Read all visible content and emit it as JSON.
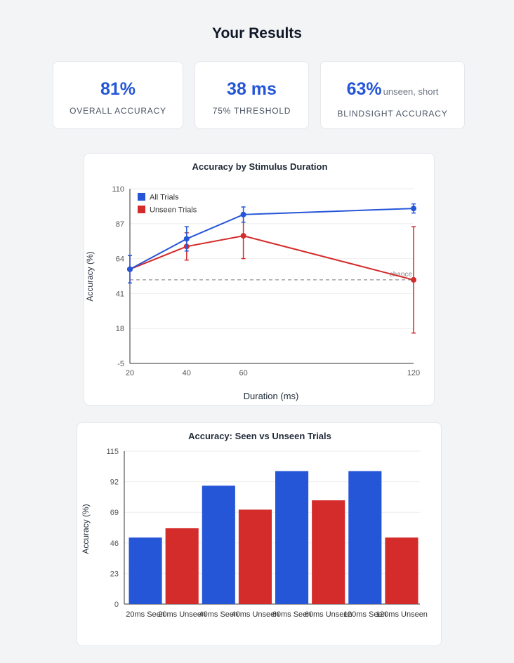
{
  "page": {
    "title": "Your Results"
  },
  "stats": [
    {
      "value": "81%",
      "note": "",
      "label": "OVERALL ACCURACY"
    },
    {
      "value": "38 ms",
      "note": "",
      "label": "75% THRESHOLD"
    },
    {
      "value": "63%",
      "note": "unseen, short",
      "label": "BLINDSIGHT ACCURACY"
    }
  ],
  "colors": {
    "all": "#2556d8",
    "unseen": "#d42b2b",
    "accent": "#2556d8"
  },
  "chart_data": [
    {
      "type": "line",
      "title": "Accuracy by Stimulus Duration",
      "xlabel": "Duration (ms)",
      "ylabel": "Accuracy (%)",
      "x": [
        20,
        40,
        60,
        120
      ],
      "xlim": [
        20,
        120
      ],
      "ylim": [
        -5,
        110
      ],
      "yticks": [
        110,
        87,
        64,
        41,
        18,
        -5
      ],
      "xticks": [
        20,
        40,
        60,
        120
      ],
      "grid": true,
      "legend_position": "top-left",
      "chance_level": 50,
      "chance_label": "chance",
      "series": [
        {
          "name": "All Trials",
          "color": "#2556d8",
          "values": [
            57,
            77,
            93,
            97
          ],
          "err": [
            9,
            8,
            5,
            3
          ]
        },
        {
          "name": "Unseen Trials",
          "color": "#d42b2b",
          "values": [
            57,
            72,
            79,
            50
          ],
          "err": [
            9,
            9,
            15,
            35
          ]
        }
      ]
    },
    {
      "type": "bar",
      "title": "Accuracy: Seen vs Unseen Trials",
      "ylabel": "Accuracy (%)",
      "ylim": [
        0,
        115
      ],
      "yticks": [
        115,
        92,
        69,
        46,
        23,
        0
      ],
      "grid": true,
      "categories": [
        "20ms Seen",
        "20ms Unseen",
        "40ms Seen",
        "40ms Unseen",
        "60ms Seen",
        "60ms Unseen",
        "120ms Seen",
        "120ms Unseen"
      ],
      "values": [
        50,
        57,
        89,
        71,
        100,
        78,
        100,
        50
      ],
      "colors": [
        "#2556d8",
        "#d42b2b",
        "#2556d8",
        "#d42b2b",
        "#2556d8",
        "#d42b2b",
        "#2556d8",
        "#d42b2b"
      ]
    }
  ]
}
